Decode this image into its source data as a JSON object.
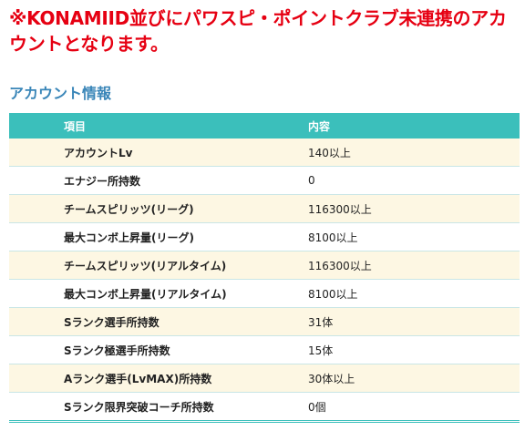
{
  "notice": "※KONAMIID並びにパワスピ・ポイントクラブ未連携のアカウントとなります。",
  "section_title": "アカウント情報",
  "table": {
    "headers": [
      "項目",
      "内容"
    ],
    "rows": [
      [
        "アカウントLv",
        "140以上"
      ],
      [
        "エナジー所持数",
        "0"
      ],
      [
        "チームスピリッツ(リーグ)",
        "116300以上"
      ],
      [
        "最大コンボ上昇量(リーグ)",
        "8100以上"
      ],
      [
        "チームスピリッツ(リアルタイム)",
        "116300以上"
      ],
      [
        "最大コンボ上昇量(リアルタイム)",
        "8100以上"
      ],
      [
        "Sランク選手所持数",
        "31体"
      ],
      [
        "Sランク極選手所持数",
        "15体"
      ],
      [
        "Aランク選手(LvMAX)所持数",
        "30体以上"
      ],
      [
        "Sランク限界突破コーチ所持数",
        "0個"
      ]
    ]
  },
  "colors": {
    "notice": "#e60012",
    "title": "#3a86b8",
    "header_bg": "#3bbfbb",
    "row_alt_bg": "#fdf7e3"
  }
}
